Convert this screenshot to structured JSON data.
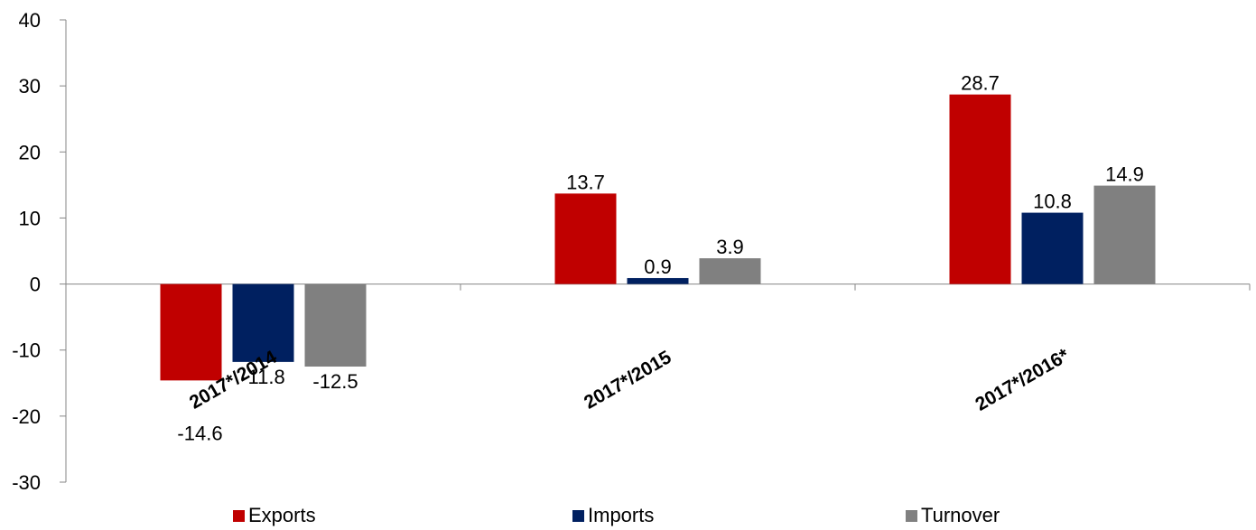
{
  "chart_data": {
    "type": "bar",
    "categories": [
      "2017*/2014",
      "2017*/2015",
      "2017*/2016*"
    ],
    "series": [
      {
        "name": "Exports",
        "color": "#c00000",
        "values": [
          -14.6,
          13.7,
          28.7
        ]
      },
      {
        "name": "Imports",
        "color": "#002060",
        "values": [
          -11.8,
          0.9,
          10.8
        ]
      },
      {
        "name": "Turnover",
        "color": "#808080",
        "values": [
          -12.5,
          3.9,
          14.9
        ]
      }
    ],
    "data_labels": [
      [
        "-14.6",
        "13.7",
        "28.7"
      ],
      [
        "-11.8",
        "0.9",
        "10.8"
      ],
      [
        "-12.5",
        "3.9",
        "14.9"
      ]
    ],
    "yticks": [
      "40",
      "30",
      "20",
      "10",
      "0",
      "-10",
      "-20",
      "-30"
    ],
    "ylim": [
      -30,
      40
    ],
    "title": "",
    "xlabel": "",
    "ylabel": "",
    "grid": false,
    "legend_position": "bottom"
  }
}
